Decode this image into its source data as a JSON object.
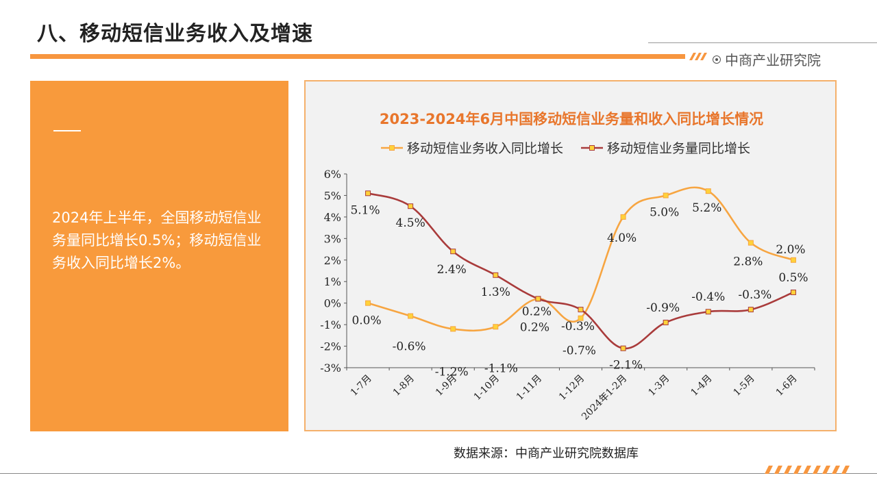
{
  "page": {
    "title": "八、移动短信业务收入及增速",
    "brand": "中商产业研究院",
    "source": "数据来源：中商产业研究院数据库",
    "accent_color": "#f7963f"
  },
  "summary": {
    "text": "2024年上半年，全国移动短信业务量同比增长0.5%；移动短信业务收入同比增长2%。",
    "background_color": "#f89a3c"
  },
  "chart_data": {
    "type": "line",
    "title": "2023-2024年6月中国移动短信业务量和收入同比增长情况",
    "categories": [
      "1-7月",
      "1-8月",
      "1-9月",
      "1-10月",
      "1-11月",
      "1-12月",
      "2024年1-2月",
      "1-3月",
      "1-4月",
      "1-5月",
      "1-6月"
    ],
    "ylim": [
      -3,
      6
    ],
    "yticks": [
      6,
      5,
      4,
      3,
      2,
      1,
      0,
      -1,
      -2,
      -3
    ],
    "ytick_labels": [
      "6%",
      "5%",
      "4%",
      "3%",
      "2%",
      "1%",
      "0%",
      "-1%",
      "-2%",
      "-3%"
    ],
    "unit": "%",
    "legend_position": "top",
    "grid": false,
    "smooth": true,
    "series": [
      {
        "name": "移动短信业务收入同比增长",
        "values": [
          0.0,
          -0.6,
          -1.2,
          -1.1,
          0.2,
          -0.7,
          4.0,
          5.0,
          5.2,
          2.8,
          2.0
        ],
        "labels": [
          "0.0%",
          "-0.6%",
          "-1.2%",
          "-1.1%",
          "0.2%",
          "-0.7%",
          "4.0%",
          "5.0%",
          "5.2%",
          "2.8%",
          "2.0%"
        ],
        "color": "#f7a541",
        "marker_color": "#ffd23a"
      },
      {
        "name": "移动短信业务量同比增长",
        "values": [
          5.1,
          4.5,
          2.4,
          1.3,
          0.2,
          -0.3,
          -2.1,
          -0.9,
          -0.4,
          -0.3,
          0.5
        ],
        "labels": [
          "5.1%",
          "4.5%",
          "2.4%",
          "1.3%",
          "0.2%",
          "-0.3%",
          "-2.1%",
          "-0.9%",
          "-0.4%",
          "-0.3%",
          "0.5%"
        ],
        "color": "#a93b3b",
        "marker_color": "#ffd23a"
      }
    ]
  }
}
